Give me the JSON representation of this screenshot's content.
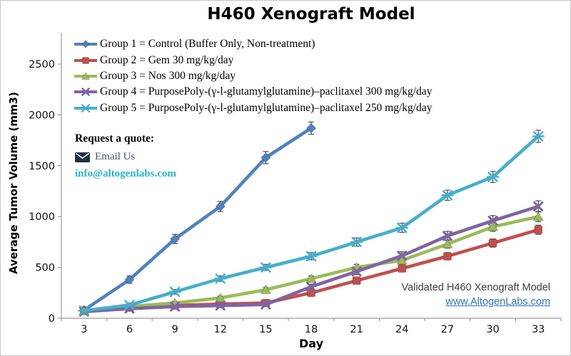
{
  "title": "H460 Xenograft Model",
  "axes": {
    "y_label": "Average Tumor Volume (mm3)",
    "x_label": "Day",
    "y_ticks": [
      0,
      500,
      1000,
      1500,
      2000,
      2500
    ],
    "x_ticks": [
      3,
      6,
      9,
      12,
      15,
      18,
      21,
      24,
      27,
      30,
      33
    ],
    "y_max": 2500,
    "grid": "off",
    "axis_color": "#9b9b9b",
    "tick_label_color": "#111111"
  },
  "quote": {
    "heading": "Request a quote:",
    "email_label": "Email Us",
    "email_address": "info@altogenlabs.com",
    "envelope_color": "#203048",
    "email_label_color": "#44546a",
    "email_address_color": "#29b2c6"
  },
  "footer": {
    "caption": "Validated H460 Xenograft Model",
    "link": "www.AltogenLabs.com",
    "caption_color": "#3f3f3f",
    "link_color": "#2e74b5"
  },
  "chart_data": {
    "type": "line",
    "title": "H460 Xenograft Model",
    "xlabel": "Day",
    "ylabel": "Average Tumor Volume (mm3)",
    "ylim": [
      0,
      2500
    ],
    "legend_position": "top-left-inside",
    "error_bar_color": "#595959",
    "x": [
      3,
      6,
      9,
      12,
      15,
      18,
      21,
      24,
      27,
      30,
      33
    ],
    "series": [
      {
        "name": "Group 1 = Control (Buffer Only, Non-treatment)",
        "color": "#4F81BD",
        "marker": "diamond",
        "values": [
          80,
          380,
          780,
          1100,
          1580,
          1870,
          null,
          null,
          null,
          null,
          null
        ],
        "err": [
          20,
          35,
          45,
          50,
          60,
          60,
          null,
          null,
          null,
          null,
          null
        ]
      },
      {
        "name": "Group 2 = Gem 30 mg/kg/day",
        "color": "#C0504D",
        "marker": "square",
        "values": [
          75,
          105,
          125,
          140,
          150,
          250,
          370,
          490,
          610,
          740,
          870
        ],
        "err": [
          12,
          12,
          14,
          15,
          18,
          22,
          28,
          32,
          35,
          40,
          45
        ]
      },
      {
        "name": "Group 3 = Nos 300 mg/kg/day",
        "color": "#9BBB59",
        "marker": "triangle",
        "values": [
          70,
          115,
          150,
          200,
          280,
          390,
          500,
          570,
          730,
          900,
          1000
        ],
        "err": [
          12,
          14,
          16,
          18,
          22,
          26,
          30,
          35,
          40,
          45,
          50
        ]
      },
      {
        "name": "Group 4 = PurposePoly-(γ-l-glutamylglutamine)–paclitaxel 300 mg/kg/day",
        "color": "#8064A2",
        "marker": "x",
        "values": [
          65,
          95,
          115,
          125,
          135,
          310,
          460,
          615,
          810,
          960,
          1100
        ],
        "err": [
          12,
          12,
          14,
          15,
          18,
          25,
          30,
          38,
          45,
          50,
          55
        ]
      },
      {
        "name": "Group 5 = PurposePoly-(γ-l-glutamylglutamine)–paclitaxel 250 mg/kg/day",
        "color": "#45AECB",
        "marker": "star",
        "values": [
          75,
          130,
          260,
          390,
          500,
          610,
          750,
          890,
          1210,
          1390,
          1790
        ],
        "err": [
          14,
          18,
          22,
          26,
          30,
          35,
          40,
          45,
          50,
          55,
          60
        ]
      }
    ]
  }
}
